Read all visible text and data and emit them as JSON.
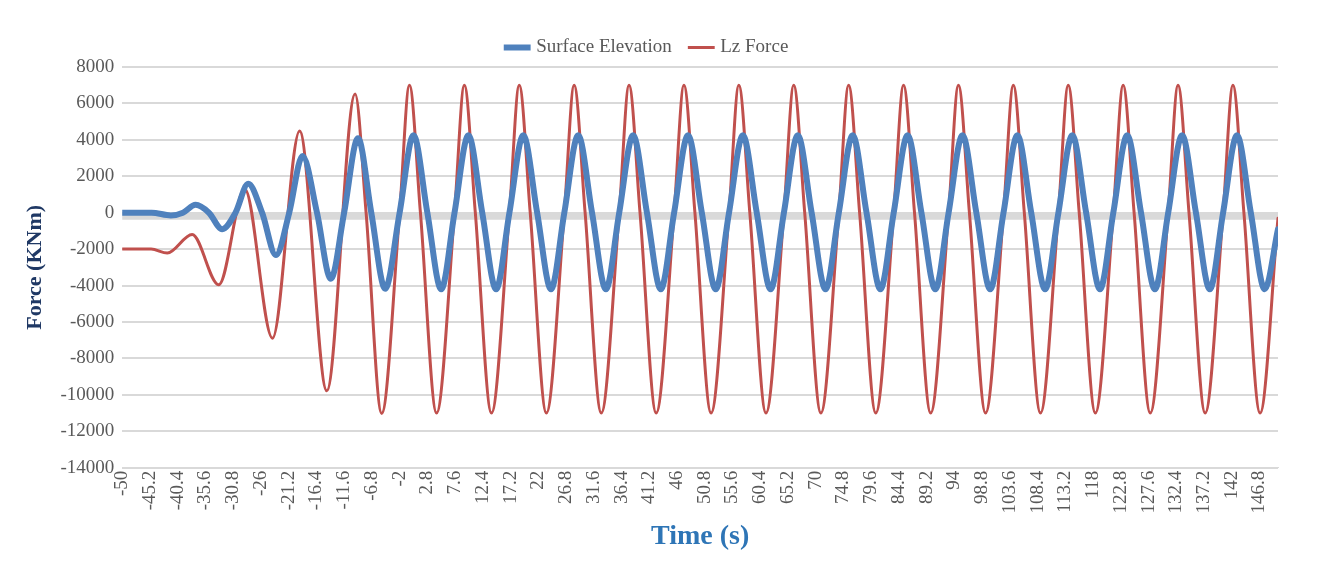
{
  "chart_data": {
    "type": "line",
    "xlabel": "Time (s)",
    "ylabel": "Force (KNm)",
    "xlim": [
      -50,
      150
    ],
    "xticks": [
      -50,
      -45.2,
      -40.4,
      -35.6,
      -30.8,
      -26,
      -21.2,
      -16.4,
      -11.6,
      -6.8,
      -2,
      2.8,
      7.6,
      12.4,
      17.2,
      22,
      26.8,
      31.6,
      36.4,
      41.2,
      46,
      50.8,
      55.6,
      60.4,
      65.2,
      70,
      74.8,
      79.6,
      84.4,
      89.2,
      94,
      98.8,
      103.6,
      108.4,
      113.2,
      118,
      122.8,
      127.6,
      132.4,
      137.2,
      142,
      146.8
    ],
    "ylim": [
      -14000,
      8000
    ],
    "yticks": [
      -14000,
      -12000,
      -10000,
      -8000,
      -6000,
      -4000,
      -2000,
      0,
      2000,
      4000,
      6000,
      8000
    ],
    "grid": "y",
    "legend": "top",
    "marker": "none",
    "line_style": "solid",
    "ref_lines": [
      {
        "axis": "y",
        "value": -200,
        "color": "#d9d9d9"
      }
    ],
    "series": [
      {
        "name": "Surface Elevation",
        "color": "#4f81bd",
        "x": [
          -50,
          -44.9,
          -41.6,
          -39.5,
          -37.3,
          -35,
          -32.7,
          -30.4,
          -28.2,
          -25.8,
          -23.4,
          -21.1,
          -18.8,
          -16.3,
          -13.9,
          -11.6,
          -9.2,
          -6.9,
          -4.5,
          -2,
          0.4,
          2.8,
          5.2,
          7.5,
          9.9,
          12.3,
          14.7,
          17,
          19.4,
          21.8,
          24.2,
          26.5,
          28.9,
          31.3,
          33.7,
          36,
          38.4,
          40.8,
          43.2,
          45.5,
          47.9,
          50.3,
          52.7,
          55,
          57.4,
          59.8,
          62.2,
          64.5,
          66.9,
          69.3,
          71.7,
          74,
          76.4,
          78.8,
          81.2,
          83.5,
          85.9,
          88.3,
          90.7,
          93,
          95.4,
          97.8,
          100.2,
          102.5,
          104.9,
          107.3,
          109.7,
          112,
          114.4,
          116.8,
          119.2,
          121.5,
          123.9,
          126.3,
          128.7,
          131,
          133.4,
          135.8,
          138.2,
          140.5,
          142.9,
          145.3,
          147.7,
          150
        ],
        "values": [
          0,
          0,
          -150,
          0,
          430,
          0,
          -910,
          0,
          1590,
          0,
          -2330,
          0,
          3110,
          0,
          -3630,
          0,
          4090,
          0,
          -4170,
          0,
          4250,
          0,
          -4200,
          0,
          4250,
          0,
          -4200,
          0,
          4250,
          0,
          -4200,
          0,
          4250,
          0,
          -4200,
          0,
          4250,
          0,
          -4200,
          0,
          4250,
          0,
          -4200,
          0,
          4250,
          0,
          -4200,
          0,
          4250,
          0,
          -4200,
          0,
          4250,
          0,
          -4200,
          0,
          4250,
          0,
          -4200,
          0,
          4250,
          0,
          -4200,
          0,
          4250,
          0,
          -4200,
          0,
          4250,
          0,
          -4200,
          0,
          4250,
          0,
          -4200,
          0,
          4250,
          0,
          -4200,
          0,
          4250,
          0,
          -4200,
          -910
        ]
      },
      {
        "name": "Lz Force",
        "color": "#c0504d",
        "x": [
          -50,
          -45,
          -42.2,
          -37.9,
          -33.3,
          -28.8,
          -24,
          -19.3,
          -14.6,
          -9.7,
          -7.8,
          -5.1,
          -2,
          -0.3,
          1.6,
          4.4,
          7.5,
          9.2,
          11.1,
          13.9,
          17,
          18.7,
          20.6,
          23.4,
          26.5,
          28.2,
          30.1,
          32.9,
          36,
          37.7,
          39.6,
          42.4,
          45.5,
          47.2,
          49.1,
          51.9,
          55,
          56.7,
          58.6,
          61.4,
          64.5,
          66.2,
          68.1,
          70.9,
          74,
          75.7,
          77.6,
          80.4,
          83.5,
          85.2,
          87.1,
          89.9,
          93,
          94.7,
          96.6,
          99.4,
          102.5,
          104.2,
          106.1,
          108.9,
          112,
          113.7,
          115.6,
          118.4,
          121.5,
          123.2,
          125.1,
          127.9,
          131,
          132.7,
          134.6,
          137.4,
          140.5,
          142.2,
          144.1,
          146.9,
          150
        ],
        "values": [
          -2000,
          -2000,
          -2220,
          -1200,
          -3960,
          1300,
          -6890,
          4480,
          -9780,
          6520,
          0,
          -11020,
          0,
          7000,
          0,
          -11000,
          0,
          7000,
          0,
          -11000,
          0,
          7000,
          0,
          -11000,
          0,
          7000,
          0,
          -11000,
          0,
          7000,
          0,
          -11000,
          0,
          7000,
          0,
          -11000,
          0,
          7000,
          0,
          -11000,
          0,
          7000,
          0,
          -11000,
          0,
          7000,
          0,
          -11000,
          0,
          7000,
          0,
          -11000,
          0,
          7000,
          0,
          -11000,
          0,
          7000,
          0,
          -11000,
          0,
          7000,
          0,
          -11000,
          0,
          7000,
          0,
          -11000,
          0,
          7000,
          0,
          -11000,
          0,
          7000,
          0,
          -11000,
          -300
        ]
      }
    ]
  }
}
